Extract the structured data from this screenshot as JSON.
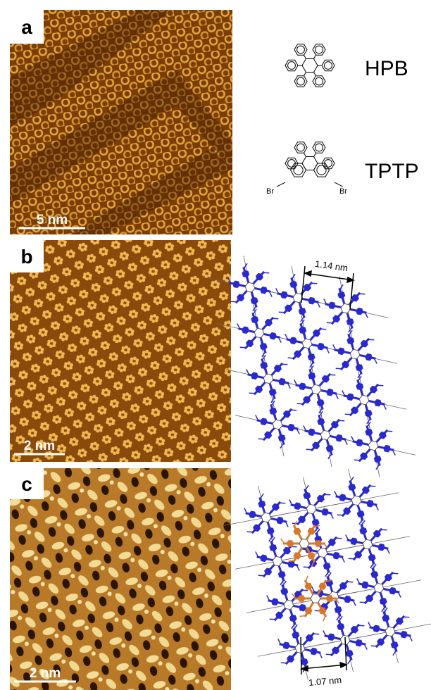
{
  "panels": [
    {
      "label": "a",
      "scale_bar": "5 nm"
    },
    {
      "label": "b",
      "scale_bar": "2 nm"
    },
    {
      "label": "c",
      "scale_bar": "2 nm"
    }
  ],
  "molecules": [
    {
      "name": "HPB"
    },
    {
      "name": "TPTP",
      "substituents": [
        "Br",
        "Br"
      ]
    }
  ],
  "models": [
    {
      "spacing": "1.14 nm"
    },
    {
      "spacing": "1.07 nm"
    }
  ]
}
